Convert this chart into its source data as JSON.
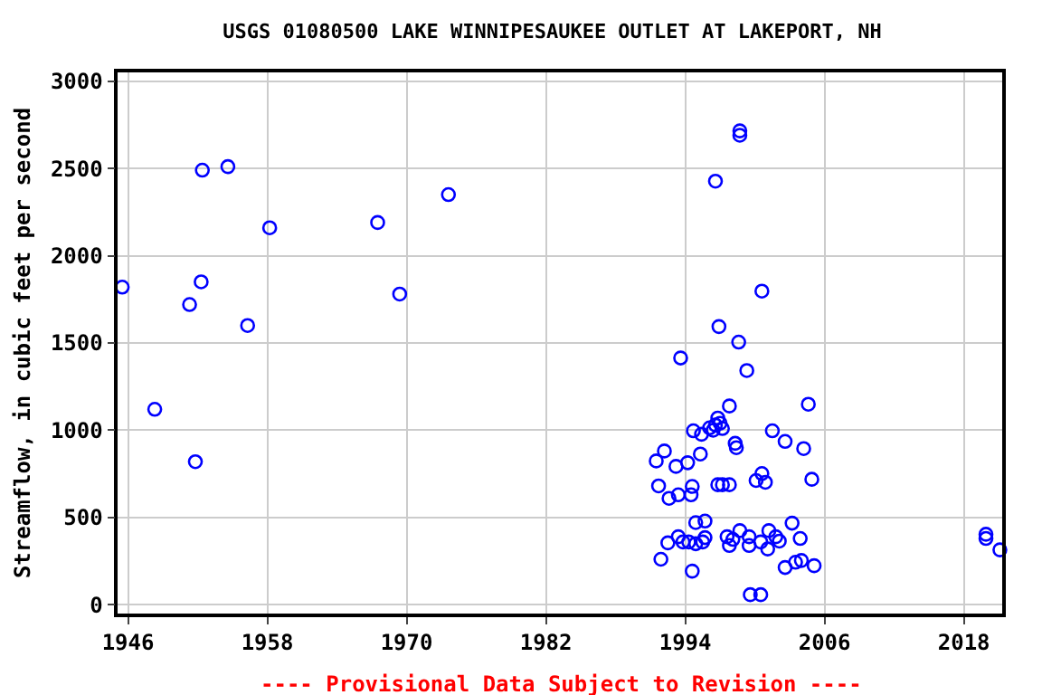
{
  "chart_data": {
    "type": "scatter",
    "title": "USGS 01080500 LAKE WINNIPESAUKEE OUTLET AT LAKEPORT, NH",
    "ylabel": "Streamflow, in cubic feet per second",
    "annotations": [
      "---- Provisional Data Subject to Revision ----"
    ],
    "xlim": [
      1945.1,
      2021.3
    ],
    "xticks": [
      1946,
      1958,
      1970,
      1982,
      1994,
      2006,
      2018
    ],
    "ylim": [
      -50,
      3050
    ],
    "yticks": [
      0,
      500,
      1000,
      1500,
      2000,
      2500,
      3000
    ],
    "grid": true,
    "marker": "circle",
    "legend": false,
    "series": [
      {
        "color": "#0000ff",
        "x": [
          1945.5,
          1948.3,
          1951.3,
          1951.8,
          1952.3,
          1952.4,
          1954.6,
          1956.3,
          1958.2,
          1967.5,
          1969.4,
          1973.6,
          1998.7,
          1998.7,
          1996.6,
          2000.6,
          1996.9,
          1998.6,
          1993.6,
          1999.3,
          1997.8,
          2004.6,
          1996.8,
          1997.0,
          1996.6,
          1997.2,
          1996.4,
          1994.7,
          1995.4,
          1996.1,
          2001.5,
          2002.6,
          2004.2,
          1998.3,
          1998.4,
          1992.2,
          1991.5,
          1995.3,
          1993.2,
          1994.2,
          2000.6,
          2000.1,
          2000.9,
          2004.9,
          1991.7,
          1994.6,
          1996.8,
          1997.2,
          1997.8,
          1993.4,
          1992.6,
          1994.5,
          1994.9,
          1995.7,
          2003.2,
          1992.5,
          1993.4,
          1993.8,
          1994.3,
          1994.9,
          1995.5,
          1995.7,
          1997.6,
          1998.1,
          1998.7,
          1999.5,
          2000.5,
          2001.2,
          2001.8,
          2002.1,
          2003.9,
          1997.8,
          1999.5,
          2001.1,
          1991.9,
          1994.6,
          2002.6,
          2003.5,
          2004.0,
          2005.1,
          1999.6,
          2000.5,
          2019.9,
          2019.9,
          2021.1
        ],
        "values": [
          1820,
          1120,
          1720,
          820,
          1850,
          2490,
          2510,
          1600,
          2160,
          2190,
          1780,
          2350,
          2715,
          2690,
          2427,
          1797,
          1594,
          1505,
          1414,
          1342,
          1139,
          1149,
          1070,
          1040,
          1030,
          1010,
          1000,
          997,
          977,
          1014,
          997,
          936,
          895,
          925,
          900,
          881,
          824,
          864,
          793,
          814,
          752,
          712,
          702,
          719,
          681,
          678,
          688,
          688,
          688,
          630,
          610,
          630,
          471,
          480,
          468,
          355,
          390,
          360,
          360,
          350,
          360,
          385,
          390,
          375,
          425,
          390,
          360,
          425,
          390,
          365,
          380,
          340,
          340,
          320,
          261,
          193,
          214,
          244,
          254,
          224,
          58,
          58,
          404,
          380,
          315
        ]
      }
    ]
  }
}
